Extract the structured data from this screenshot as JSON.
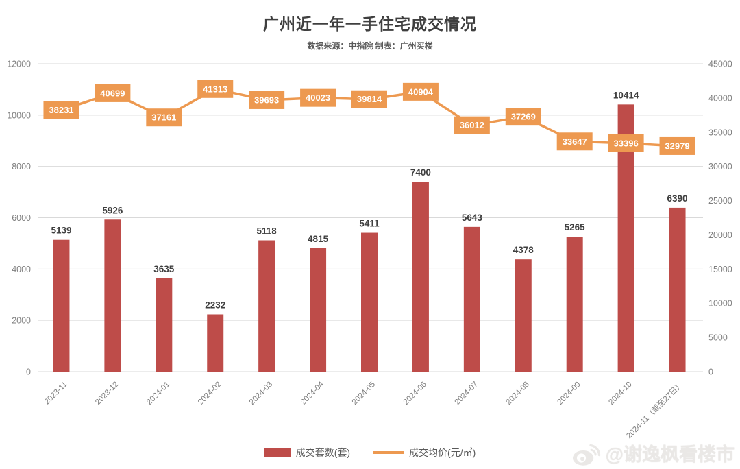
{
  "title": "广州近一年一手住宅成交情况",
  "subtitle": "数据来源：中指院  制表：广州买楼",
  "legend": {
    "items": [
      {
        "label": "成交套数(套)",
        "swatch": "bar",
        "color": "#BE4C49"
      },
      {
        "label": "成交均价(元/㎡)",
        "swatch": "line",
        "color": "#ED9950"
      }
    ]
  },
  "watermark": {
    "icon": "weibo-icon",
    "text": "@谢逸枫看楼市"
  },
  "chart_data": {
    "type": "bar+line",
    "title": "广州近一年一手住宅成交情况",
    "categories": [
      "2023-11",
      "2023-12",
      "2024-01",
      "2024-02",
      "2024-03",
      "2024-04",
      "2024-05",
      "2024-06",
      "2024-07",
      "2024-08",
      "2024-09",
      "2024-10",
      "2024-11（截至27日）"
    ],
    "series": [
      {
        "name": "成交套数(套)",
        "chart_type": "bar",
        "axis": "left",
        "color": "#BE4C49",
        "values": [
          5139,
          5926,
          3635,
          2232,
          5118,
          4815,
          5411,
          7400,
          5643,
          4378,
          5265,
          10414,
          6390
        ]
      },
      {
        "name": "成交均价(元/㎡)",
        "chart_type": "line",
        "axis": "right",
        "color": "#ED9950",
        "label_text_color": "#FFFFFF",
        "values": [
          38231,
          40699,
          37161,
          41313,
          39693,
          40023,
          39814,
          40904,
          36012,
          37269,
          33647,
          33396,
          32979
        ]
      }
    ],
    "left_axis": {
      "min": 0,
      "max": 12000,
      "step": 2000,
      "ticks": [
        0,
        2000,
        4000,
        6000,
        8000,
        10000,
        12000
      ]
    },
    "right_axis": {
      "min": 0,
      "max": 45000,
      "step": 5000,
      "ticks": [
        0,
        5000,
        10000,
        15000,
        20000,
        25000,
        30000,
        35000,
        40000,
        45000
      ]
    },
    "grid": true,
    "gridline_color": "#D9D9D9",
    "legend_position": "bottom"
  }
}
